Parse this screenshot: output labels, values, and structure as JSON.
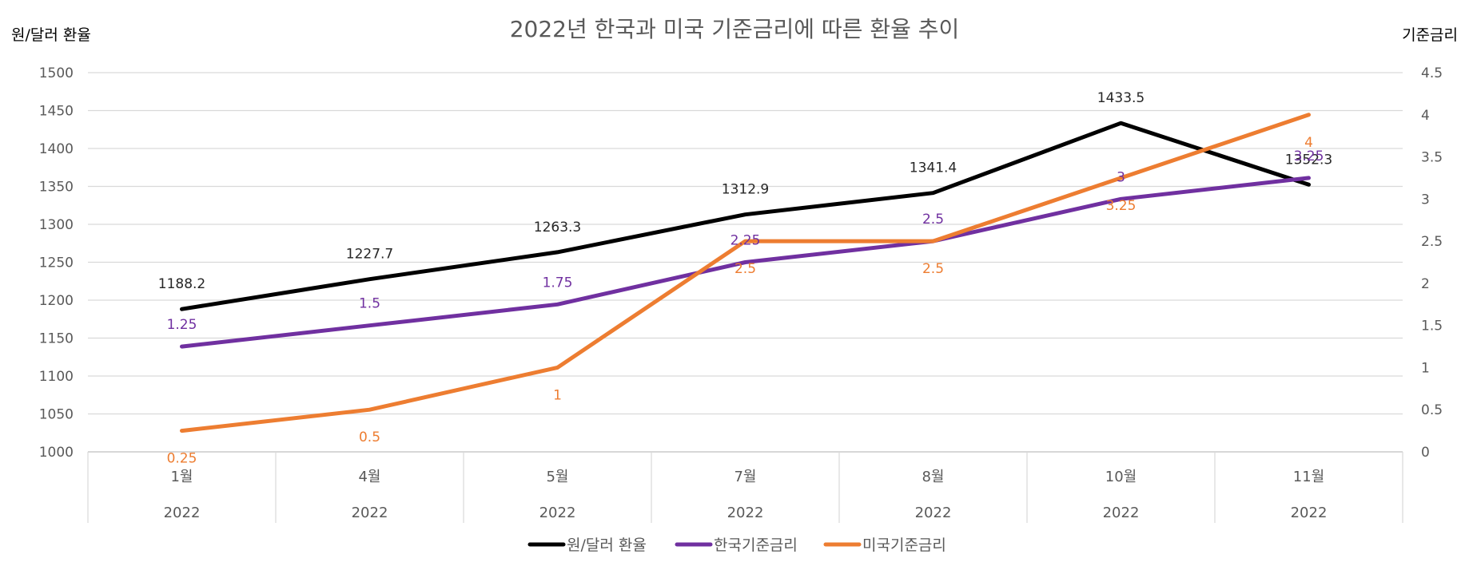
{
  "chart_data": {
    "type": "line",
    "title": "2022년 한국과 미국 기준금리에 따른 환율 추이",
    "ylabel_left": "원/달러 환율",
    "ylabel_right": "기준금리",
    "ylim_left": [
      1000,
      1500
    ],
    "yticks_left": [
      "1000",
      "1050",
      "1100",
      "1150",
      "1200",
      "1250",
      "1300",
      "1350",
      "1400",
      "1450",
      "1500"
    ],
    "ylim_right": [
      0,
      4.5
    ],
    "yticks_right": [
      "0",
      "0.5",
      "1",
      "1.5",
      "2",
      "2.5",
      "3",
      "3.5",
      "4",
      "4.5"
    ],
    "categories": [
      "1월",
      "4월",
      "5월",
      "7월",
      "8월",
      "10월",
      "11월"
    ],
    "category_group": [
      "2022",
      "2022",
      "2022",
      "2022",
      "2022",
      "2022",
      "2022"
    ],
    "grid": true,
    "legend_position": "bottom",
    "series": [
      {
        "name": "원/달러 환율",
        "axis": "left",
        "color": "#000000",
        "values": [
          1188.2,
          1227.7,
          1263.3,
          1312.9,
          1341.4,
          1433.5,
          1352.3
        ],
        "labels": [
          "1188.2",
          "1227.7",
          "1263.3",
          "1312.9",
          "1341.4",
          "1433.5",
          "1352.3"
        ]
      },
      {
        "name": "한국기준금리",
        "axis": "right",
        "color": "#7030a0",
        "values": [
          1.25,
          1.5,
          1.75,
          2.25,
          2.5,
          3,
          3.25
        ],
        "labels": [
          "1.25",
          "1.5",
          "1.75",
          "2.25",
          "2.5",
          "3",
          "3.25"
        ]
      },
      {
        "name": "미국기준금리",
        "axis": "right",
        "color": "#ed7d31",
        "values": [
          0.25,
          0.5,
          1,
          2.5,
          2.5,
          3.25,
          4
        ],
        "labels": [
          "0.25",
          "0.5",
          "1",
          "2.5",
          "2.5",
          "3.25",
          "4"
        ]
      }
    ]
  }
}
